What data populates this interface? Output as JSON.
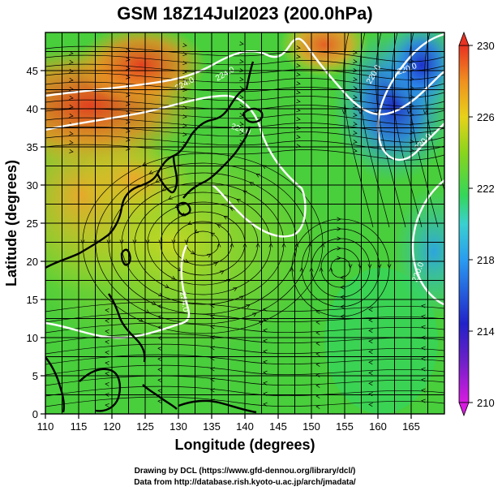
{
  "title": "GSM 18Z14Jul2023 (200.0hPa)",
  "x_axis": {
    "label": "Longitude (degrees)",
    "range": [
      110,
      170
    ],
    "ticks": [
      "110",
      "115",
      "120",
      "125",
      "130",
      "135",
      "140",
      "145",
      "150",
      "155",
      "160",
      "165"
    ]
  },
  "y_axis": {
    "label": "Latitude  (degrees)",
    "range": [
      0,
      50
    ],
    "ticks": [
      "0",
      "5",
      "10",
      "15",
      "20",
      "25",
      "30",
      "35",
      "40",
      "45"
    ]
  },
  "colorbar": {
    "ticks": [
      "210",
      "214",
      "218",
      "222",
      "226",
      "230"
    ],
    "range": [
      210,
      230
    ],
    "colors": [
      "#d81be0",
      "#2222c8",
      "#2a9cf0",
      "#3ad0d0",
      "#34d65a",
      "#8ad41c",
      "#e8d21a",
      "#f09020",
      "#e83222"
    ]
  },
  "contour_labels": [
    "224.0",
    "224.0",
    "220.0",
    "220.0",
    "220.0",
    "220.0",
    "224.0",
    "224.0"
  ],
  "credits": {
    "line1": "Drawing by DCL (https://www.gfd-dennou.org/library/dcl/)",
    "line2": "Data from http://database.rish.kyoto-u.ac.jp/arch/jmadata/"
  },
  "chart_data": {
    "type": "heatmap",
    "variable": "temperature field with streamlines",
    "x_range": [
      110,
      170
    ],
    "y_range": [
      0,
      50
    ],
    "value_range": [
      210,
      230
    ],
    "fields": {
      "warm_anomalies": [
        {
          "lon": 115,
          "lat": 40,
          "value": 228
        },
        {
          "lon": 125,
          "lat": 45,
          "value": 229
        },
        {
          "lon": 152,
          "lat": 47,
          "value": 229
        },
        {
          "lon": 123,
          "lat": 31,
          "value": 226
        }
      ],
      "cold_anomalies": [
        {
          "lon": 161,
          "lat": 40,
          "value": 215
        },
        {
          "lon": 165,
          "lat": 45,
          "value": 217
        },
        {
          "lon": 167,
          "lat": 22,
          "value": 218
        }
      ]
    }
  }
}
